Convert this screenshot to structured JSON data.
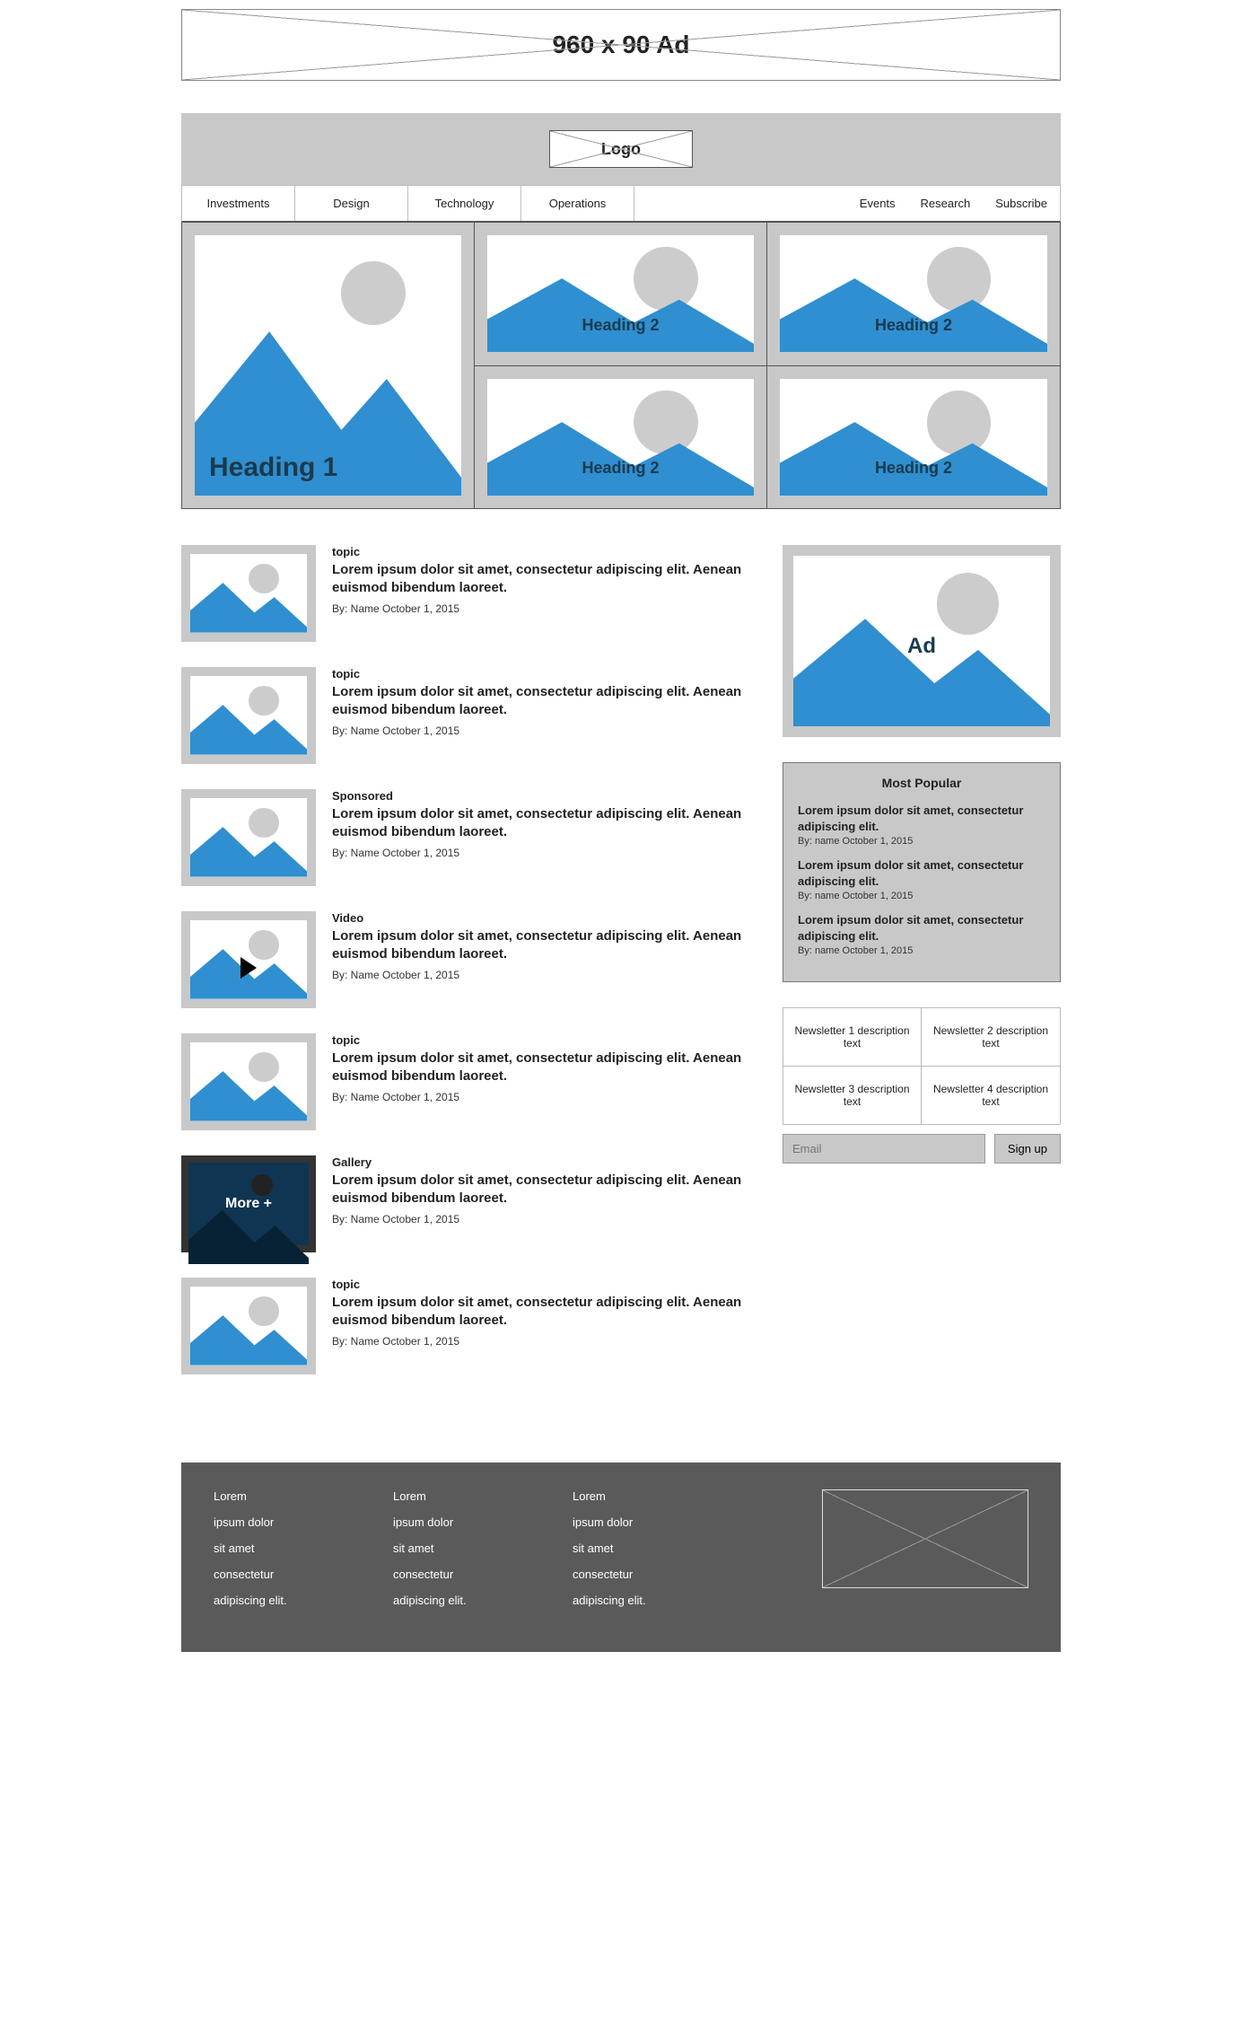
{
  "theme": {
    "panel_bg": "#c8c8c8",
    "mountain_color": "#2f8fd0",
    "sun_color": "#cccccc",
    "footer_bg": "#5a5a5a",
    "heading_color": "#1b3a4d",
    "border_color": "#888888"
  },
  "top_ad": {
    "label": "960 x 90 Ad"
  },
  "header": {
    "logo_label": "Logo"
  },
  "nav": {
    "left": [
      "Investments",
      "Design",
      "Technology",
      "Operations"
    ],
    "right": [
      "Events",
      "Research",
      "Subscribe"
    ]
  },
  "hero": {
    "main_heading": "Heading 1",
    "tiles": [
      "Heading 2",
      "Heading 2",
      "Heading 2",
      "Heading 2"
    ]
  },
  "feed": [
    {
      "kind": "photo",
      "topic": "topic",
      "title": "Lorem ipsum dolor sit amet, consectetur adipiscing elit. Aenean euismod bibendum laoreet.",
      "byline": "By: Name October 1, 2015"
    },
    {
      "kind": "photo",
      "topic": "topic",
      "title": "Lorem ipsum dolor sit amet, consectetur adipiscing elit. Aenean euismod bibendum laoreet.",
      "byline": "By: Name October 1, 2015"
    },
    {
      "kind": "photo",
      "topic": "Sponsored",
      "title": "Lorem ipsum dolor sit amet, consectetur adipiscing elit. Aenean euismod bibendum laoreet.",
      "byline": "By: Name October 1, 2015"
    },
    {
      "kind": "video",
      "topic": "Video",
      "title": "Lorem ipsum dolor sit amet, consectetur adipiscing elit. Aenean euismod bibendum laoreet.",
      "byline": "By: Name October 1, 2015"
    },
    {
      "kind": "photo",
      "topic": "topic",
      "title": "Lorem ipsum dolor sit amet, consectetur adipiscing elit. Aenean euismod bibendum laoreet.",
      "byline": "By: Name October 1, 2015"
    },
    {
      "kind": "gallery",
      "topic": "Gallery",
      "title": "Lorem ipsum dolor sit amet, consectetur adipiscing elit. Aenean euismod bibendum laoreet.",
      "byline": "By: Name October 1, 2015",
      "more_label": "More +"
    },
    {
      "kind": "photo",
      "topic": "topic",
      "title": "Lorem ipsum dolor sit amet, consectetur adipiscing elit. Aenean euismod bibendum laoreet.",
      "byline": "By: Name October 1, 2015"
    }
  ],
  "sidebar": {
    "ad_label": "Ad",
    "popular": {
      "heading": "Most Popular",
      "items": [
        {
          "title": "Lorem ipsum dolor sit amet, consectetur adipiscing elit.",
          "byline": "By: name October 1, 2015"
        },
        {
          "title": "Lorem ipsum dolor sit amet, consectetur adipiscing elit.",
          "byline": "By: name October 1, 2015"
        },
        {
          "title": "Lorem ipsum dolor sit amet, consectetur adipiscing elit.",
          "byline": "By: name October 1, 2015"
        }
      ]
    },
    "newsletters": [
      "Newsletter 1 description text",
      "Newsletter 2 description text",
      "Newsletter 3 description text",
      "Newsletter 4 description text"
    ],
    "email_placeholder": "Email",
    "signup_label": "Sign up"
  },
  "footer": {
    "columns": [
      [
        "Lorem",
        "ipsum dolor",
        "sit amet",
        "consectetur",
        "adipiscing elit."
      ],
      [
        "Lorem",
        "ipsum dolor",
        "sit amet",
        "consectetur",
        "adipiscing elit."
      ],
      [
        "Lorem",
        "ipsum dolor",
        "sit amet",
        "consectetur",
        "adipiscing elit."
      ]
    ]
  }
}
